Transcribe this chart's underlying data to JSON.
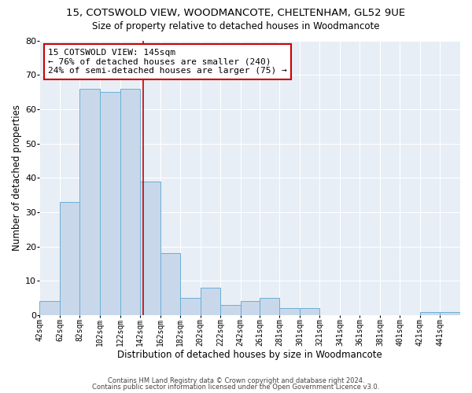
{
  "title": "15, COTSWOLD VIEW, WOODMANCOTE, CHELTENHAM, GL52 9UE",
  "subtitle": "Size of property relative to detached houses in Woodmancote",
  "xlabel": "Distribution of detached houses by size in Woodmancote",
  "ylabel": "Number of detached properties",
  "bar_color": "#c8d8ea",
  "bar_edge_color": "#6aafd6",
  "background_color": "#e8eef5",
  "grid_color": "#ffffff",
  "bin_edges": [
    42,
    62,
    82,
    102,
    122,
    142,
    162,
    182,
    202,
    222,
    242,
    261,
    281,
    301,
    321,
    341,
    361,
    381,
    401,
    421,
    441,
    461
  ],
  "bin_labels": [
    "42sqm",
    "62sqm",
    "82sqm",
    "102sqm",
    "122sqm",
    "142sqm",
    "162sqm",
    "182sqm",
    "202sqm",
    "222sqm",
    "242sqm",
    "261sqm",
    "281sqm",
    "301sqm",
    "321sqm",
    "341sqm",
    "361sqm",
    "381sqm",
    "401sqm",
    "421sqm",
    "441sqm"
  ],
  "counts": [
    4,
    33,
    66,
    65,
    66,
    39,
    18,
    5,
    8,
    3,
    4,
    5,
    2,
    2,
    0,
    0,
    0,
    0,
    0,
    1,
    1
  ],
  "property_line_x": 145,
  "property_line_color": "#cc0000",
  "annotation_line1": "15 COTSWOLD VIEW: 145sqm",
  "annotation_line2": "← 76% of detached houses are smaller (240)",
  "annotation_line3": "24% of semi-detached houses are larger (75) →",
  "ylim": [
    0,
    80
  ],
  "yticks": [
    0,
    10,
    20,
    30,
    40,
    50,
    60,
    70,
    80
  ],
  "footer_line1": "Contains HM Land Registry data © Crown copyright and database right 2024.",
  "footer_line2": "Contains public sector information licensed under the Open Government Licence v3.0."
}
